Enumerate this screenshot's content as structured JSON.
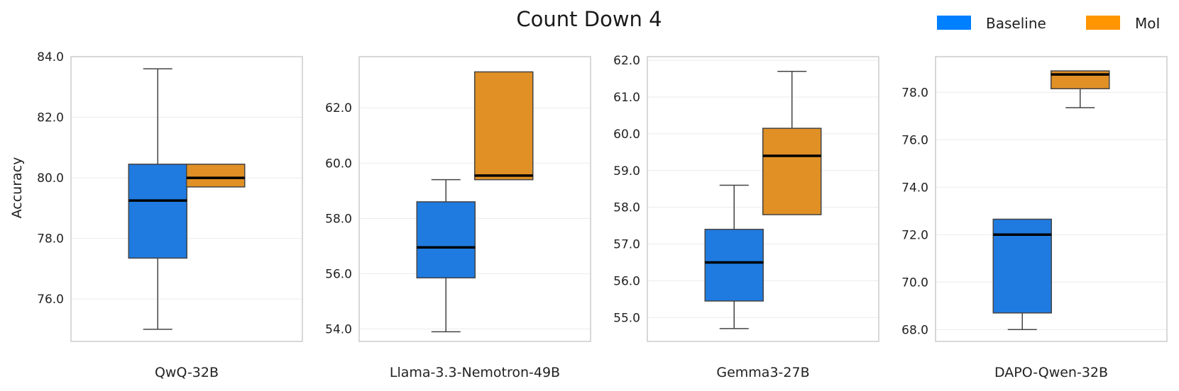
{
  "title": "Count Down 4",
  "legend": [
    {
      "label": "Baseline",
      "color": "#007fff"
    },
    {
      "label": "MoI",
      "color": "#ff9500"
    }
  ],
  "ylabel": "Accuracy",
  "colors": {
    "baseline_box": "#1f7be0",
    "moi_box": "#e09025",
    "median": "#000000",
    "whisker": "#444444",
    "grid": "#ebebeb",
    "frame": "#cccccc"
  },
  "chart_data": [
    {
      "type": "box",
      "xlabel": "QwQ-32B",
      "ylim": [
        74.6,
        84.0
      ],
      "yticks": [
        76.0,
        78.0,
        80.0,
        82.0,
        84.0
      ],
      "tick_labels": [
        "76.0",
        "78.0",
        "80.0",
        "82.0",
        "84.0"
      ],
      "series": [
        {
          "name": "Baseline",
          "whislo": 75.0,
          "q1": 77.35,
          "med": 79.25,
          "q3": 80.45,
          "whishi": 83.6
        },
        {
          "name": "MoI",
          "whislo": 79.7,
          "q1": 79.7,
          "med": 80.0,
          "q3": 80.45,
          "whishi": 80.45
        }
      ]
    },
    {
      "type": "box",
      "xlabel": "Llama-3.3-Nemotron-49B",
      "ylim": [
        53.55,
        63.85
      ],
      "yticks": [
        54.0,
        56.0,
        58.0,
        60.0,
        62.0
      ],
      "tick_labels": [
        "54.0",
        "56.0",
        "58.0",
        "60.0",
        "62.0"
      ],
      "series": [
        {
          "name": "Baseline",
          "whislo": 53.9,
          "q1": 55.85,
          "med": 56.95,
          "q3": 58.6,
          "whishi": 59.4
        },
        {
          "name": "MoI",
          "whislo": 59.4,
          "q1": 59.4,
          "med": 59.55,
          "q3": 63.3,
          "whishi": 63.3
        }
      ]
    },
    {
      "type": "box",
      "xlabel": "Gemma3-27B",
      "ylim": [
        54.35,
        62.1
      ],
      "yticks": [
        55.0,
        56.0,
        57.0,
        58.0,
        59.0,
        60.0,
        61.0,
        62.0
      ],
      "tick_labels": [
        "55.0",
        "56.0",
        "57.0",
        "58.0",
        "59.0",
        "60.0",
        "61.0",
        "62.0"
      ],
      "series": [
        {
          "name": "Baseline",
          "whislo": 54.7,
          "q1": 55.45,
          "med": 56.5,
          "q3": 57.4,
          "whishi": 58.6
        },
        {
          "name": "MoI",
          "whislo": 57.8,
          "q1": 57.8,
          "med": 59.4,
          "q3": 60.15,
          "whishi": 61.7
        }
      ]
    },
    {
      "type": "box",
      "xlabel": "DAPO-Qwen-32B",
      "ylim": [
        67.5,
        79.5
      ],
      "yticks": [
        68.0,
        70.0,
        72.0,
        74.0,
        76.0,
        78.0
      ],
      "tick_labels": [
        "68.0",
        "70.0",
        "72.0",
        "74.0",
        "76.0",
        "78.0"
      ],
      "series": [
        {
          "name": "Baseline",
          "whislo": 68.0,
          "q1": 68.7,
          "med": 72.0,
          "q3": 72.65,
          "whishi": 72.65
        },
        {
          "name": "MoI",
          "whislo": 77.35,
          "q1": 78.15,
          "med": 78.75,
          "q3": 78.9,
          "whishi": 78.9
        }
      ]
    }
  ]
}
